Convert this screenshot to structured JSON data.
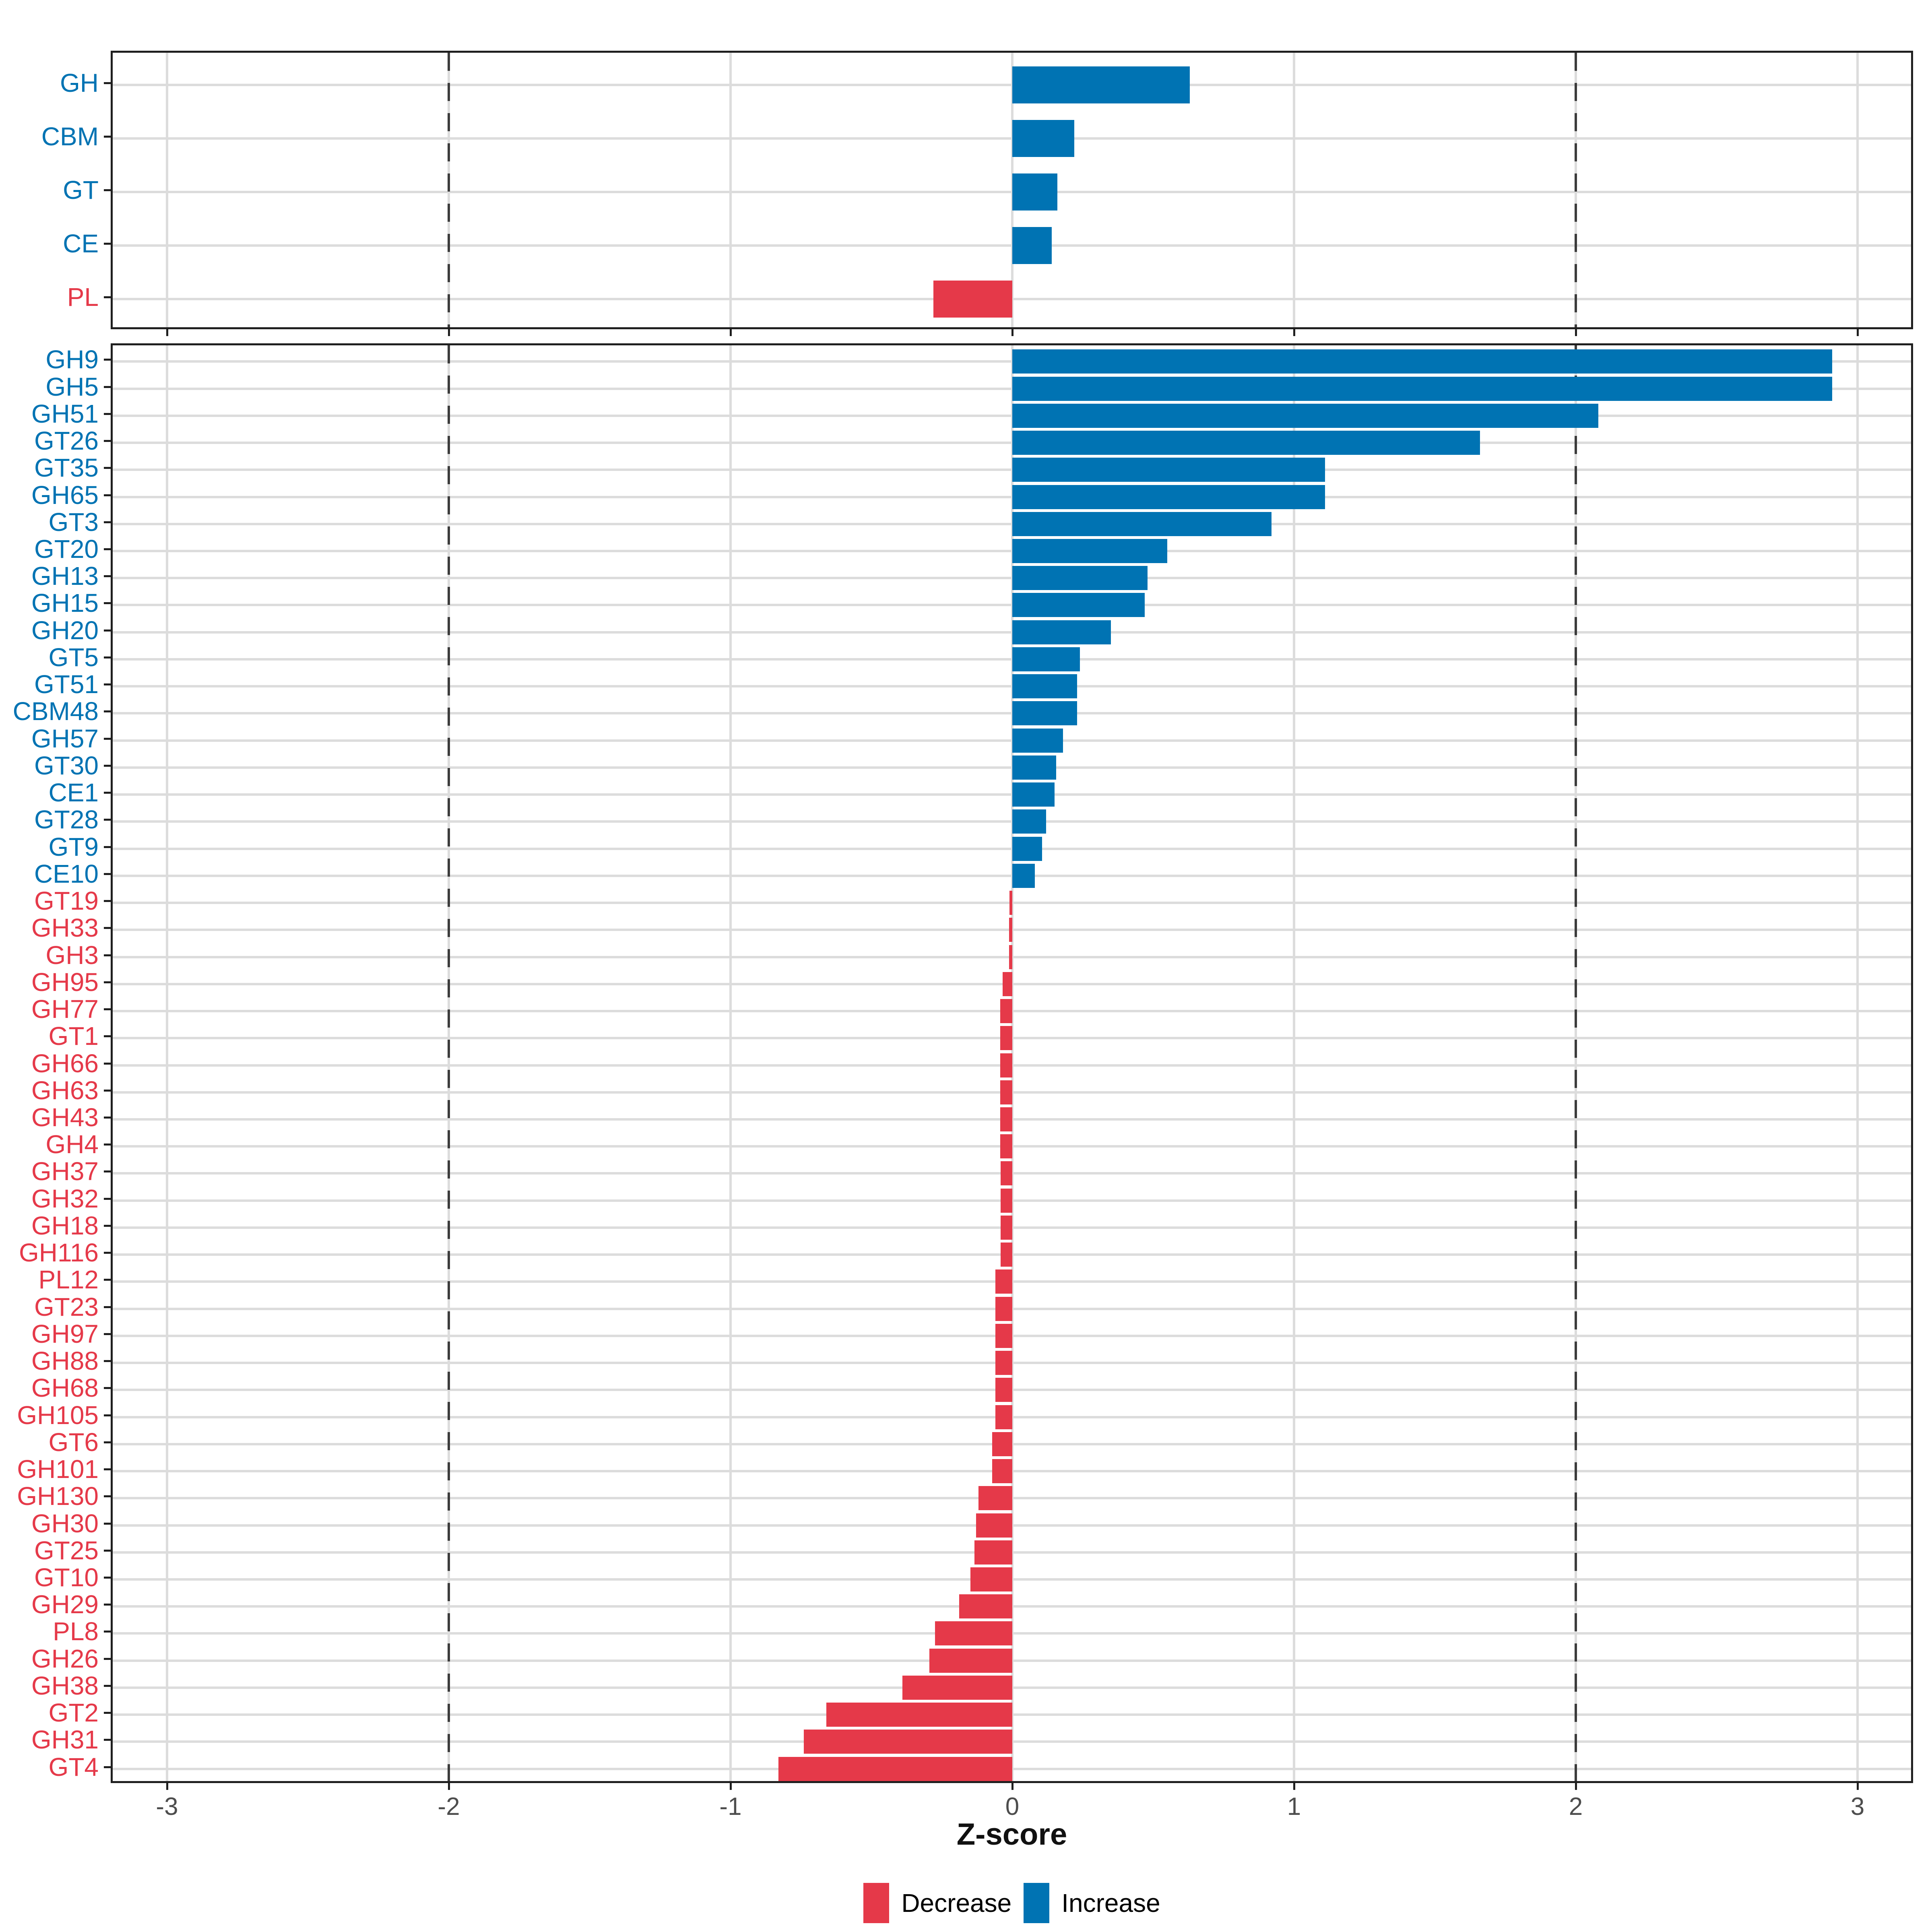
{
  "axis": {
    "label": "Z-score",
    "tick_labels": [
      "-3",
      "-2",
      "-1",
      "0",
      "1",
      "2",
      "3"
    ],
    "tick_values": [
      -3,
      -2,
      -1,
      0,
      1,
      2,
      3
    ],
    "dashed_at": [
      -2,
      2
    ]
  },
  "legend": {
    "position": "bottom",
    "items": [
      {
        "label": "Decrease",
        "color": "#e53949"
      },
      {
        "label": "Increase",
        "color": "#0073b3"
      }
    ]
  },
  "colors": {
    "increase": "#0073b3",
    "decrease": "#e53949",
    "grid": "#dcdcdc",
    "dashed_line": "#3c3c3c",
    "axis_text": "#4d4d4d",
    "panel_border": "#1f1f1f"
  },
  "chart_data": [
    {
      "type": "bar",
      "orientation": "horizontal",
      "panel": "top-classes",
      "xlabel": "Z-score",
      "xlim": [
        -3.35,
        3.35
      ],
      "grid": true,
      "categories": [
        "GH",
        "CBM",
        "GT",
        "CE",
        "PL"
      ],
      "values": [
        0.63,
        0.22,
        0.16,
        0.14,
        -0.28
      ]
    },
    {
      "type": "bar",
      "orientation": "horizontal",
      "panel": "bottom-families",
      "xlabel": "Z-score",
      "xlim": [
        -3.35,
        3.35
      ],
      "grid": true,
      "categories": [
        "GH9",
        "GH5",
        "GH51",
        "GT26",
        "GT35",
        "GH65",
        "GT3",
        "GT20",
        "GH13",
        "GH15",
        "GH20",
        "GT5",
        "GT51",
        "CBM48",
        "GH57",
        "GT30",
        "CE1",
        "GT28",
        "GT9",
        "CE10",
        "GT19",
        "GH33",
        "GH3",
        "GH95",
        "GH77",
        "GT1",
        "GH66",
        "GH63",
        "GH43",
        "GH4",
        "GH37",
        "GH32",
        "GH18",
        "GH116",
        "PL12",
        "GT23",
        "GH97",
        "GH88",
        "GH68",
        "GH105",
        "GT6",
        "GH101",
        "GH130",
        "GH30",
        "GT25",
        "GT10",
        "GH29",
        "PL8",
        "GH26",
        "GH38",
        "GT2",
        "GH31",
        "GT4"
      ],
      "values": [
        2.91,
        2.91,
        2.08,
        1.66,
        1.11,
        1.11,
        0.92,
        0.55,
        0.48,
        0.47,
        0.35,
        0.24,
        0.23,
        0.23,
        0.18,
        0.155,
        0.15,
        0.12,
        0.105,
        0.08,
        -0.01,
        -0.012,
        -0.012,
        -0.034,
        -0.043,
        -0.043,
        -0.043,
        -0.043,
        -0.043,
        -0.043,
        -0.042,
        -0.042,
        -0.042,
        -0.042,
        -0.06,
        -0.06,
        -0.06,
        -0.06,
        -0.06,
        -0.06,
        -0.072,
        -0.072,
        -0.12,
        -0.128,
        -0.134,
        -0.148,
        -0.188,
        -0.274,
        -0.295,
        -0.39,
        -0.66,
        -0.74,
        -0.83
      ]
    }
  ]
}
